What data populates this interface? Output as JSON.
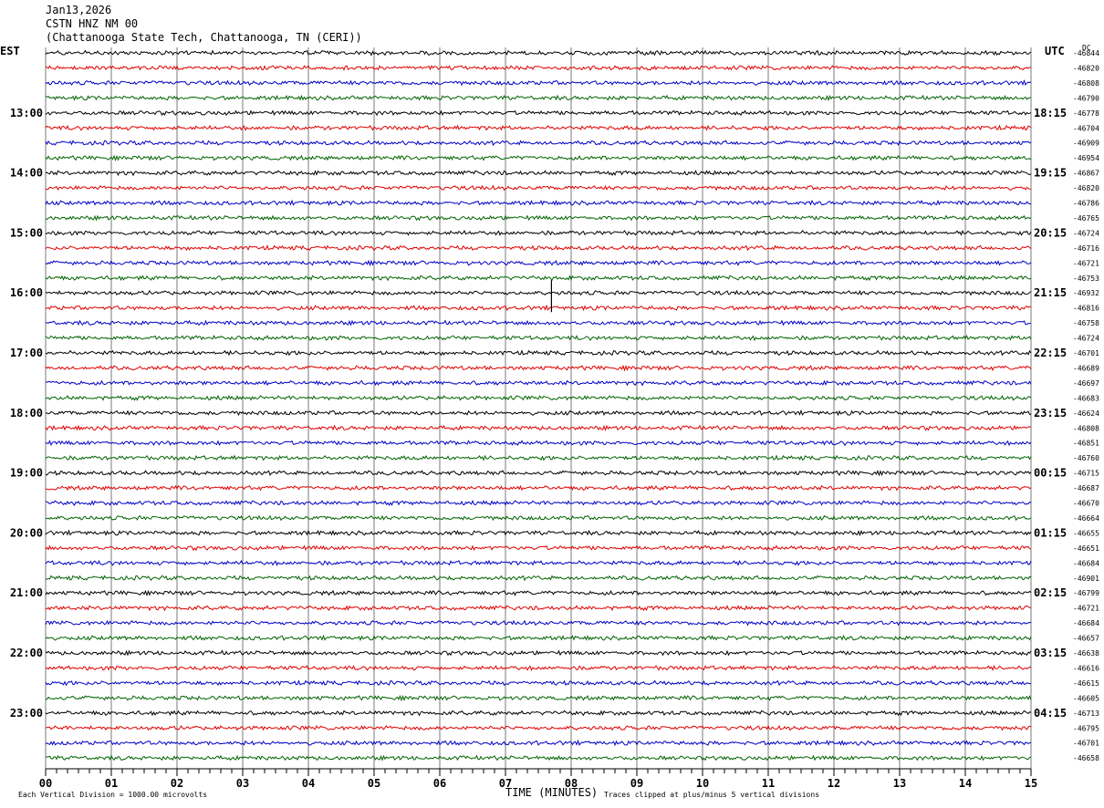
{
  "header": {
    "date": "Jan13,2026",
    "station": "CSTN HNZ NM 00",
    "location": "(Chattanooga State Tech, Chattanooga, TN (CERI))"
  },
  "left_tz": "EST",
  "right_tz": "UTC",
  "dc_label": "DC",
  "footer": {
    "scale_note": "Each Vertical Division = 1000.00 microvolts",
    "xlabel": "TIME (MINUTES)",
    "clip_note": "Traces clipped at plus/minus 5 vertical divisions"
  },
  "chart_data": {
    "type": "line",
    "title": "CSTN HNZ NM 00",
    "xlabel": "TIME (MINUTES)",
    "ylabel": "",
    "xlim": [
      0,
      15
    ],
    "x_ticks": [
      "00",
      "01",
      "02",
      "03",
      "04",
      "05",
      "06",
      "07",
      "08",
      "09",
      "10",
      "11",
      "12",
      "13",
      "14",
      "15"
    ],
    "grid": true,
    "trace_colors": [
      "#000000",
      "#e00000",
      "#0000c8",
      "#006400"
    ],
    "trace_count": 48,
    "left_hour_labels": [
      "13:00",
      "14:00",
      "15:00",
      "16:00",
      "17:00",
      "18:00",
      "19:00",
      "20:00",
      "21:00",
      "22:00",
      "23:00"
    ],
    "right_hour_labels": [
      "18:15",
      "19:15",
      "20:15",
      "21:15",
      "22:15",
      "23:15",
      "00:15",
      "01:15",
      "02:15",
      "03:15",
      "04:15"
    ],
    "dc_offsets": [
      -46844,
      -46820,
      -46808,
      -46790,
      -46778,
      -46704,
      -46909,
      -46954,
      -46867,
      -46820,
      -46786,
      -46765,
      -46724,
      -46716,
      -46721,
      -46753,
      -46932,
      -46816,
      -46758,
      -46724,
      -46701,
      -46689,
      -46697,
      -46683,
      -46624,
      -46808,
      -46851,
      -46760,
      -46715,
      -46687,
      -46670,
      -46664,
      -46655,
      -46651,
      -46684,
      -46901,
      -46799,
      -46721,
      -46684,
      -46657,
      -46638,
      -46616,
      -46615,
      -46605,
      -46713,
      -46795,
      -46701,
      -46658
    ],
    "events": [
      {
        "trace_index": 16,
        "minute": 7.7,
        "amplitude": "spike"
      }
    ]
  }
}
